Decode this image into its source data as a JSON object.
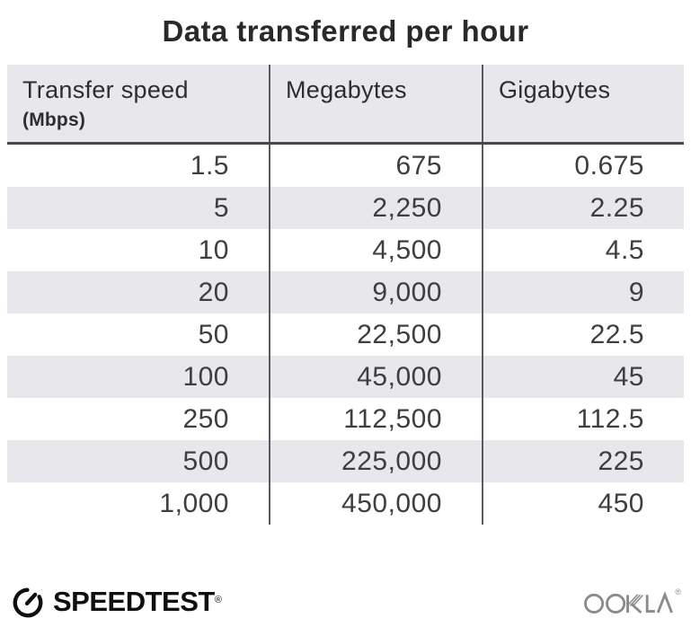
{
  "title": "Data transferred per hour",
  "table": {
    "headers": [
      {
        "label": "Transfer speed",
        "sub": "(Mbps)"
      },
      {
        "label": "Megabytes"
      },
      {
        "label": "Gigabytes"
      }
    ],
    "rows": [
      [
        "1.5",
        "675",
        "0.675"
      ],
      [
        "5",
        "2,250",
        "2.25"
      ],
      [
        "10",
        "4,500",
        "4.5"
      ],
      [
        "20",
        "9,000",
        "9"
      ],
      [
        "50",
        "22,500",
        "22.5"
      ],
      [
        "100",
        "45,000",
        "45"
      ],
      [
        "250",
        "112,500",
        "112.5"
      ],
      [
        "500",
        "225,000",
        "225"
      ],
      [
        "1,000",
        "450,000",
        "450"
      ]
    ]
  },
  "footer": {
    "speedtest_label": "SPEEDTEST",
    "speedtest_reg": "®",
    "ookla_label": "OOKLA",
    "ookla_reg": "®"
  },
  "colors": {
    "title_text": "#29292b",
    "header_bg": "#e8e8ec",
    "header_text": "#2d2d2f",
    "header_underline": "#48484c",
    "stripe": "#e8e8ec",
    "divider": "#5a5a5e",
    "cell_text": "#3e3e40",
    "speedtest_black": "#0f0f0f",
    "ookla_gray": "#8b8b8b"
  },
  "chart_data": {
    "type": "table",
    "title": "Data transferred per hour",
    "columns": [
      "Transfer speed (Mbps)",
      "Megabytes",
      "Gigabytes"
    ],
    "rows": [
      [
        1.5,
        675,
        0.675
      ],
      [
        5,
        2250,
        2.25
      ],
      [
        10,
        4500,
        4.5
      ],
      [
        20,
        9000,
        9
      ],
      [
        50,
        22500,
        22.5
      ],
      [
        100,
        45000,
        45
      ],
      [
        250,
        112500,
        112.5
      ],
      [
        500,
        225000,
        225
      ],
      [
        1000,
        450000,
        450
      ]
    ],
    "layout": {
      "zebra_striping": true,
      "header_background": true,
      "column_dividers": true
    }
  }
}
